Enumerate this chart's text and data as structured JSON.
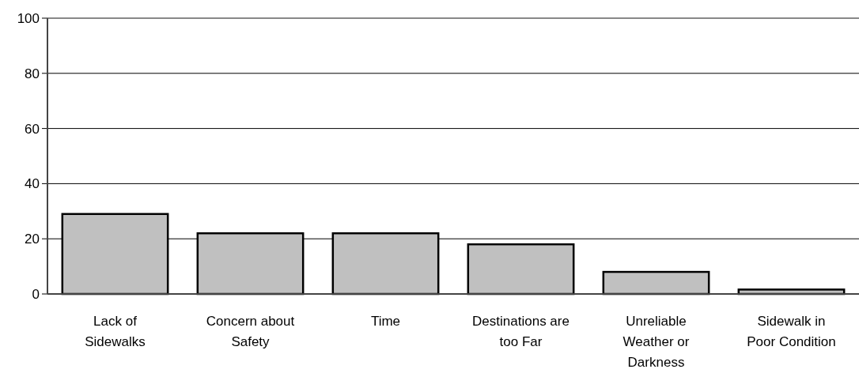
{
  "chart_data": {
    "type": "bar",
    "categories": [
      "Lack of\nSidewalks",
      "Concern about\nSafety",
      "Time",
      "Destinations are\ntoo Far",
      "Unreliable\nWeather or\nDarkness",
      "Sidewalk in\nPoor Condition"
    ],
    "values": [
      29,
      22,
      22,
      18,
      8,
      1.6
    ],
    "color": "#c0c0c0",
    "ylim": [
      0,
      100
    ],
    "yticks": [
      0,
      20,
      40,
      60,
      80,
      100
    ],
    "grid": "y"
  }
}
